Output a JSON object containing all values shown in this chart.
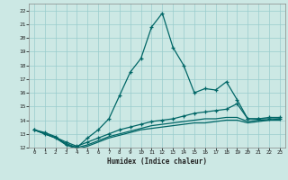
{
  "xlabel": "Humidex (Indice chaleur)",
  "background_color": "#cce8e4",
  "grid_color": "#99cccc",
  "line_color": "#006666",
  "xlim": [
    -0.5,
    23.5
  ],
  "ylim": [
    12,
    22.5
  ],
  "xticks": [
    0,
    1,
    2,
    3,
    4,
    5,
    6,
    7,
    8,
    9,
    10,
    11,
    12,
    13,
    14,
    15,
    16,
    17,
    18,
    19,
    20,
    21,
    22,
    23
  ],
  "yticks": [
    12,
    13,
    14,
    15,
    16,
    17,
    18,
    19,
    20,
    21,
    22
  ],
  "series": [
    {
      "x": [
        0,
        1,
        2,
        3,
        4,
        5,
        6,
        7,
        8,
        9,
        10,
        11,
        12,
        13,
        14,
        15,
        16,
        17,
        18,
        19,
        20,
        21,
        22,
        23
      ],
      "y": [
        13.3,
        13.1,
        12.8,
        12.2,
        12.0,
        12.7,
        13.3,
        14.1,
        15.8,
        17.5,
        18.5,
        20.8,
        21.8,
        19.3,
        18.0,
        16.0,
        16.3,
        16.2,
        16.8,
        15.5,
        14.1,
        14.1,
        14.1,
        14.1
      ],
      "marker": true
    },
    {
      "x": [
        0,
        1,
        2,
        3,
        4,
        5,
        6,
        7,
        8,
        9,
        10,
        11,
        12,
        13,
        14,
        15,
        16,
        17,
        18,
        19,
        20,
        21,
        22,
        23
      ],
      "y": [
        13.3,
        13.0,
        12.75,
        12.4,
        12.1,
        12.4,
        12.7,
        13.0,
        13.3,
        13.5,
        13.7,
        13.9,
        14.0,
        14.1,
        14.3,
        14.5,
        14.6,
        14.7,
        14.8,
        15.2,
        14.1,
        14.1,
        14.2,
        14.2
      ],
      "marker": true
    },
    {
      "x": [
        0,
        1,
        2,
        3,
        4,
        5,
        6,
        7,
        8,
        9,
        10,
        11,
        12,
        13,
        14,
        15,
        16,
        17,
        18,
        19,
        20,
        21,
        22,
        23
      ],
      "y": [
        13.3,
        13.0,
        12.7,
        12.3,
        12.0,
        12.2,
        12.5,
        12.8,
        13.0,
        13.2,
        13.4,
        13.6,
        13.7,
        13.8,
        13.9,
        14.0,
        14.1,
        14.1,
        14.2,
        14.2,
        13.9,
        14.0,
        14.0,
        14.1
      ],
      "marker": false
    },
    {
      "x": [
        0,
        1,
        2,
        3,
        4,
        5,
        6,
        7,
        8,
        9,
        10,
        11,
        12,
        13,
        14,
        15,
        16,
        17,
        18,
        19,
        20,
        21,
        22,
        23
      ],
      "y": [
        13.3,
        13.0,
        12.7,
        12.2,
        11.9,
        12.1,
        12.4,
        12.7,
        12.9,
        13.1,
        13.3,
        13.4,
        13.5,
        13.6,
        13.7,
        13.8,
        13.8,
        13.9,
        14.0,
        14.0,
        13.8,
        13.9,
        14.0,
        14.0
      ],
      "marker": false
    }
  ]
}
